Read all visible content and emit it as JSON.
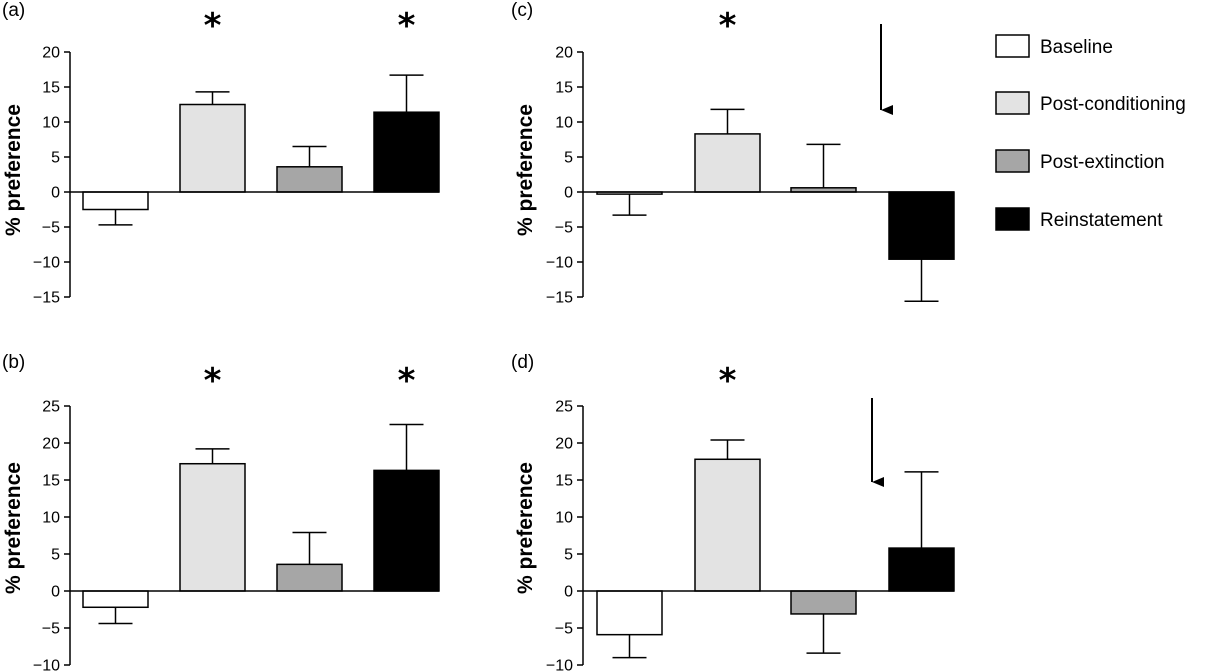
{
  "chart_data": [
    {
      "type": "bar",
      "panel": "(a)",
      "ylabel": "% preference",
      "ylim": [
        -15,
        20
      ],
      "yticks": [
        20,
        15,
        10,
        5,
        0,
        -5,
        -10,
        -15
      ],
      "series": [
        {
          "name": "Baseline",
          "value": -2.5,
          "error": 2.2,
          "significant": false
        },
        {
          "name": "Post-conditioning",
          "value": 12.5,
          "error": 1.8,
          "significant": true
        },
        {
          "name": "Post-extinction",
          "value": 3.6,
          "error": 2.9,
          "significant": false
        },
        {
          "name": "Reinstatement",
          "value": 11.4,
          "error": 5.3,
          "significant": true
        }
      ],
      "arrow": false
    },
    {
      "type": "bar",
      "panel": "(b)",
      "ylabel": "% preference",
      "ylim": [
        -10,
        25
      ],
      "yticks": [
        25,
        20,
        15,
        10,
        5,
        0,
        -5,
        -10
      ],
      "series": [
        {
          "name": "Baseline",
          "value": -2.2,
          "error": 2.2,
          "significant": false
        },
        {
          "name": "Post-conditioning",
          "value": 17.2,
          "error": 2.0,
          "significant": true
        },
        {
          "name": "Post-extinction",
          "value": 3.6,
          "error": 4.3,
          "significant": false
        },
        {
          "name": "Reinstatement",
          "value": 16.3,
          "error": 6.2,
          "significant": true
        }
      ],
      "arrow": false
    },
    {
      "type": "bar",
      "panel": "(c)",
      "ylabel": "% preference",
      "ylim": [
        -15,
        20
      ],
      "yticks": [
        20,
        15,
        10,
        5,
        0,
        -5,
        -10,
        -15
      ],
      "series": [
        {
          "name": "Baseline",
          "value": -0.3,
          "error": 3.0,
          "significant": false
        },
        {
          "name": "Post-conditioning",
          "value": 8.3,
          "error": 3.5,
          "significant": true
        },
        {
          "name": "Post-extinction",
          "value": 0.6,
          "error": 6.2,
          "significant": false
        },
        {
          "name": "Reinstatement",
          "value": -9.6,
          "error": 6.0,
          "significant": false
        }
      ],
      "arrow": true
    },
    {
      "type": "bar",
      "panel": "(d)",
      "ylabel": "% preference",
      "ylim": [
        -10,
        25
      ],
      "yticks": [
        25,
        20,
        15,
        10,
        5,
        0,
        -5,
        -10
      ],
      "series": [
        {
          "name": "Baseline",
          "value": -5.9,
          "error": 3.1,
          "significant": false
        },
        {
          "name": "Post-conditioning",
          "value": 17.8,
          "error": 2.6,
          "significant": true
        },
        {
          "name": "Post-extinction",
          "value": -3.1,
          "error": 5.3,
          "significant": false
        },
        {
          "name": "Reinstatement",
          "value": 5.8,
          "error": 10.3,
          "significant": false
        }
      ],
      "arrow": true
    }
  ],
  "legend": {
    "items": [
      {
        "label": "Baseline",
        "color": "#ffffff"
      },
      {
        "label": "Post-conditioning",
        "color": "#e3e3e3"
      },
      {
        "label": "Post-extinction",
        "color": "#a6a6a6"
      },
      {
        "label": "Reinstatement",
        "color": "#000000"
      }
    ]
  },
  "significance_marker": "*",
  "colors": {
    "baseline": "#ffffff",
    "post_conditioning": "#e3e3e3",
    "post_extinction": "#a6a6a6",
    "reinstatement": "#000000",
    "stroke": "#000000"
  }
}
